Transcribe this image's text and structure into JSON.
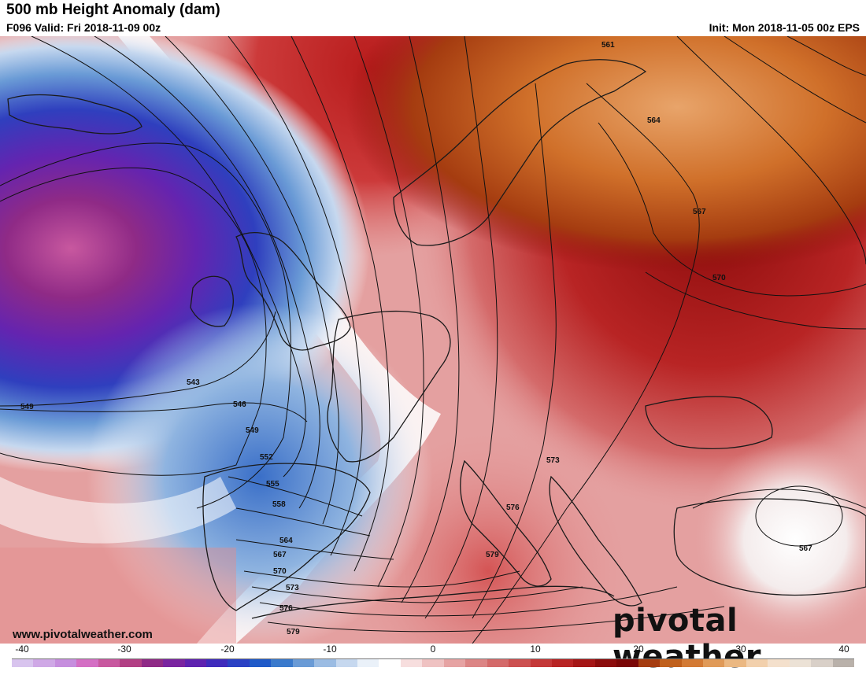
{
  "header": {
    "title": "500 mb Height Anomaly (dam)",
    "valid": "F096 Valid: Fri 2018-11-09 00z",
    "init": "Init: Mon 2018-11-05 00z EPS"
  },
  "footer": {
    "website": "www.pivotalweather.com",
    "logo_text": "pivotal weather"
  },
  "contour_labels": [
    "561",
    "564",
    "567",
    "570",
    "543",
    "549",
    "546",
    "549",
    "552",
    "555",
    "558",
    "564",
    "567",
    "570",
    "573",
    "576",
    "579",
    "573",
    "576",
    "579",
    "567"
  ],
  "colorbar": {
    "ticks": [
      "-40",
      "-30",
      "-20",
      "-10",
      "0",
      "10",
      "20",
      "30",
      "40"
    ],
    "colors": [
      "#d8c4ee",
      "#cfa8e6",
      "#c68ede",
      "#d46fc4",
      "#c8589f",
      "#b23f84",
      "#8f2a86",
      "#7a24a0",
      "#5e22b0",
      "#3f2bbc",
      "#2a41c4",
      "#1f5ac8",
      "#3a7acc",
      "#6a9bd6",
      "#9bbce3",
      "#c6d8ef",
      "#eaf1f9",
      "#ffffff",
      "#f7dede",
      "#efc2c2",
      "#e6a3a3",
      "#dc8585",
      "#d46a6a",
      "#cc5050",
      "#c43838",
      "#b82424",
      "#a51616",
      "#8c0c0c",
      "#7a0606",
      "#a53c10",
      "#c0601c",
      "#d37a34",
      "#e09a58",
      "#ebb882",
      "#f2d0ac",
      "#f4e0cc",
      "#ece2d6",
      "#d9d0c8",
      "#b9b1aa"
    ]
  }
}
